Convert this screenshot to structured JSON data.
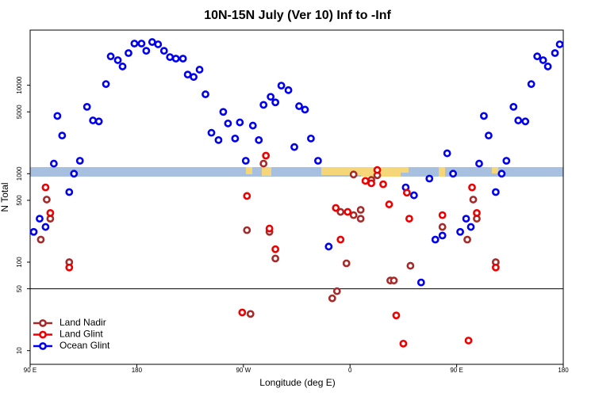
{
  "chart_data": {
    "type": "scatter",
    "title": "10N-15N July (Ver 10)   Inf to -Inf",
    "x_label": "Longitude (deg E)",
    "y_label": "N Total",
    "ylog": true,
    "xlim": [
      90,
      540
    ],
    "ylim": [
      7,
      42000
    ],
    "xticks": [
      {
        "value": 90,
        "label": "90 E"
      },
      {
        "value": 180,
        "label": "180"
      },
      {
        "value": 270,
        "label": "90 W"
      },
      {
        "value": 360,
        "label": "0"
      },
      {
        "value": 450,
        "label": "90 E"
      },
      {
        "value": 540,
        "label": "180"
      }
    ],
    "yticks": [
      10,
      50,
      100,
      500,
      1000,
      5000,
      10000
    ],
    "hline": 50,
    "legend": "bottom-left",
    "series": [
      {
        "name": "Land Nadir",
        "color": "#a52a2a",
        "x": [
          99,
          104,
          107,
          123,
          273,
          276,
          287,
          292,
          297,
          345,
          349,
          352,
          357,
          363,
          363,
          369,
          369,
          378,
          383,
          394,
          397,
          411,
          438,
          459,
          464,
          467,
          483
        ],
        "values": [
          180,
          510,
          310,
          100,
          230,
          26,
          1300,
          220,
          110,
          39,
          47,
          370,
          97,
          980,
          340,
          310,
          390,
          850,
          960,
          62,
          62,
          91,
          250,
          180,
          510,
          310,
          100
        ]
      },
      {
        "name": "Land Glint",
        "color": "#ee0000",
        "x": [
          103,
          107,
          123,
          273,
          269,
          289,
          292,
          297,
          348,
          352,
          358,
          373,
          378,
          383,
          388,
          393,
          399,
          405,
          408,
          410,
          438,
          460,
          463,
          467,
          483
        ],
        "values": [
          700,
          360,
          87,
          560,
          27,
          1600,
          240,
          140,
          410,
          180,
          370,
          830,
          780,
          1100,
          760,
          450,
          25,
          12,
          610,
          310,
          340,
          13,
          700,
          360,
          87
        ]
      },
      {
        "name": "Ocean Glint",
        "color": "#0000ee",
        "x": [
          93,
          98,
          103,
          110,
          113,
          117,
          123,
          127,
          132,
          138,
          143,
          148,
          154,
          158,
          164,
          168,
          173,
          178,
          184,
          188,
          193,
          198,
          203,
          208,
          213,
          219,
          223,
          228,
          233,
          238,
          243,
          249,
          253,
          257,
          263,
          267,
          272,
          278,
          283,
          287,
          293,
          297,
          302,
          308,
          313,
          317,
          322,
          327,
          333,
          342,
          407,
          414,
          420,
          427,
          432,
          438,
          442,
          447,
          453,
          458,
          462,
          469,
          473,
          477,
          483,
          488,
          492,
          498,
          502,
          508,
          513,
          518,
          523,
          527,
          533,
          537
        ],
        "values": [
          220,
          310,
          250,
          1300,
          4500,
          2700,
          620,
          1000,
          1400,
          5700,
          4000,
          3900,
          10300,
          21200,
          19200,
          16300,
          23100,
          29600,
          29600,
          24500,
          30800,
          29000,
          24500,
          20800,
          20000,
          20000,
          13200,
          12400,
          15000,
          7900,
          2900,
          2400,
          5000,
          3700,
          2500,
          3800,
          1400,
          3500,
          2400,
          6000,
          7400,
          6400,
          9900,
          8800,
          2000,
          5800,
          5300,
          2500,
          1400,
          150,
          700,
          570,
          59,
          880,
          180,
          200,
          1700,
          1000,
          220,
          310,
          250,
          1300,
          4500,
          2700,
          620,
          1000,
          1400,
          5700,
          4000,
          3900,
          10300,
          21200,
          19200,
          16300,
          23100,
          29000
        ]
      }
    ]
  }
}
